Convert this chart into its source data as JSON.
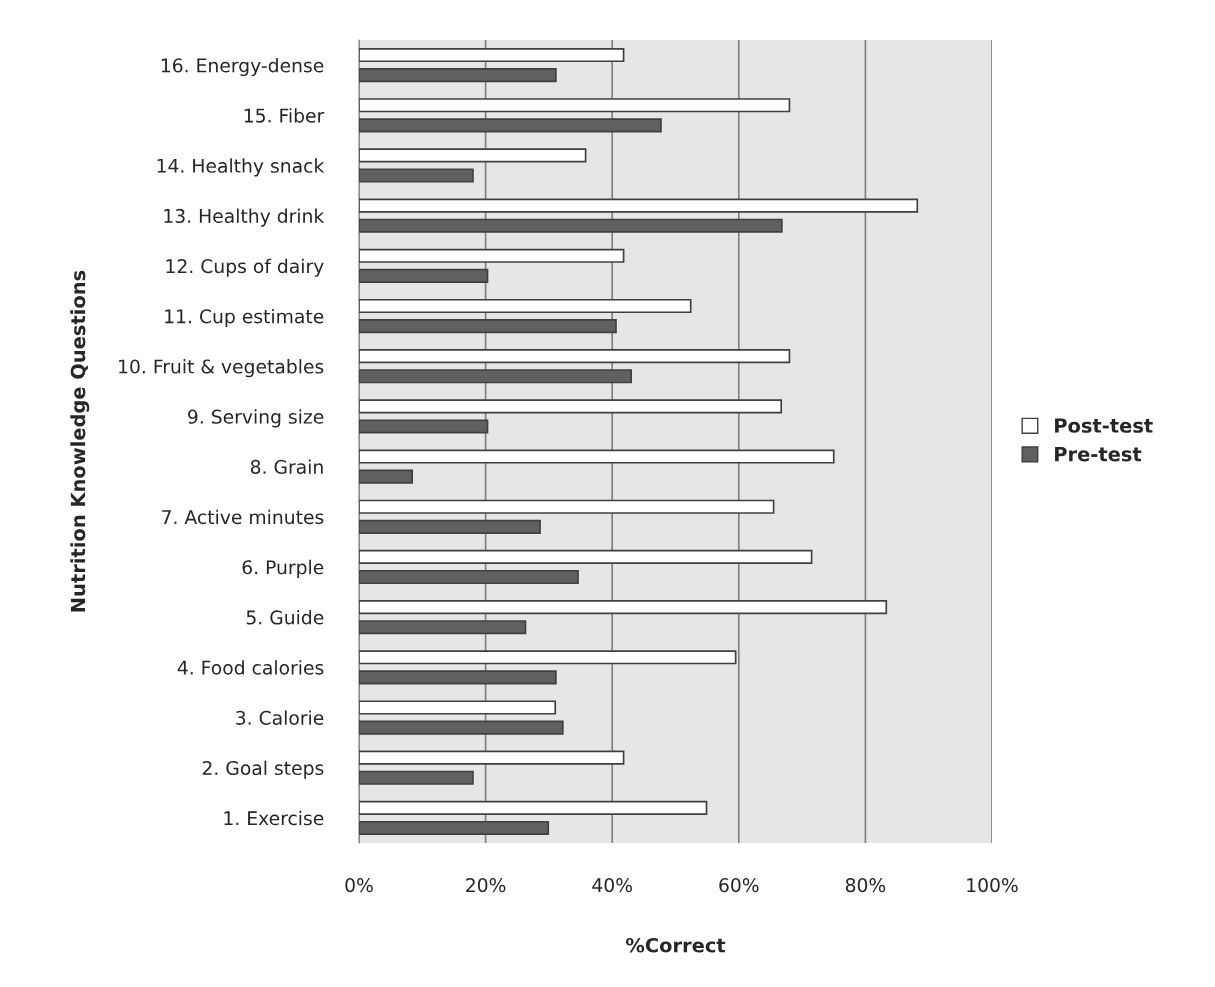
{
  "chart_data": {
    "type": "bar",
    "orientation": "horizontal",
    "xlabel": "%Correct",
    "ylabel": "Nutrition Knowledge Questions",
    "categories": [
      "16. Energy-dense",
      "15. Fiber",
      "14. Healthy snack",
      "13. Healthy drink",
      "12. Cups of dairy",
      "11. Cup estimate",
      "10. Fruit & vegetables",
      "9. Serving size",
      "8. Grain",
      "7. Active minutes",
      "6. Purple",
      "5. Guide",
      "4. Food calories",
      "3. Calorie",
      "2. Goal steps",
      "1. Exercise"
    ],
    "series": [
      {
        "name": "Post-test",
        "color": "#ffffff",
        "values": [
          41.8,
          68.0,
          35.8,
          88.2,
          41.8,
          52.4,
          68.0,
          66.7,
          75.0,
          65.5,
          71.5,
          83.3,
          59.5,
          31.0,
          41.8,
          54.9
        ]
      },
      {
        "name": "Pre-test",
        "color": "#606060",
        "values": [
          31.1,
          47.7,
          18.0,
          66.8,
          20.3,
          40.6,
          43.0,
          20.3,
          8.4,
          28.6,
          34.6,
          26.3,
          31.1,
          32.2,
          18.0,
          29.9
        ]
      }
    ],
    "xlim": [
      0,
      100
    ],
    "xticks": [
      {
        "value": 0,
        "label": "0%"
      },
      {
        "value": 20,
        "label": "20%"
      },
      {
        "value": 40,
        "label": "40%"
      },
      {
        "value": 60,
        "label": "60%"
      },
      {
        "value": 80,
        "label": "80%"
      },
      {
        "value": 100,
        "label": "100%"
      }
    ],
    "grid": "x",
    "legend": "right"
  }
}
